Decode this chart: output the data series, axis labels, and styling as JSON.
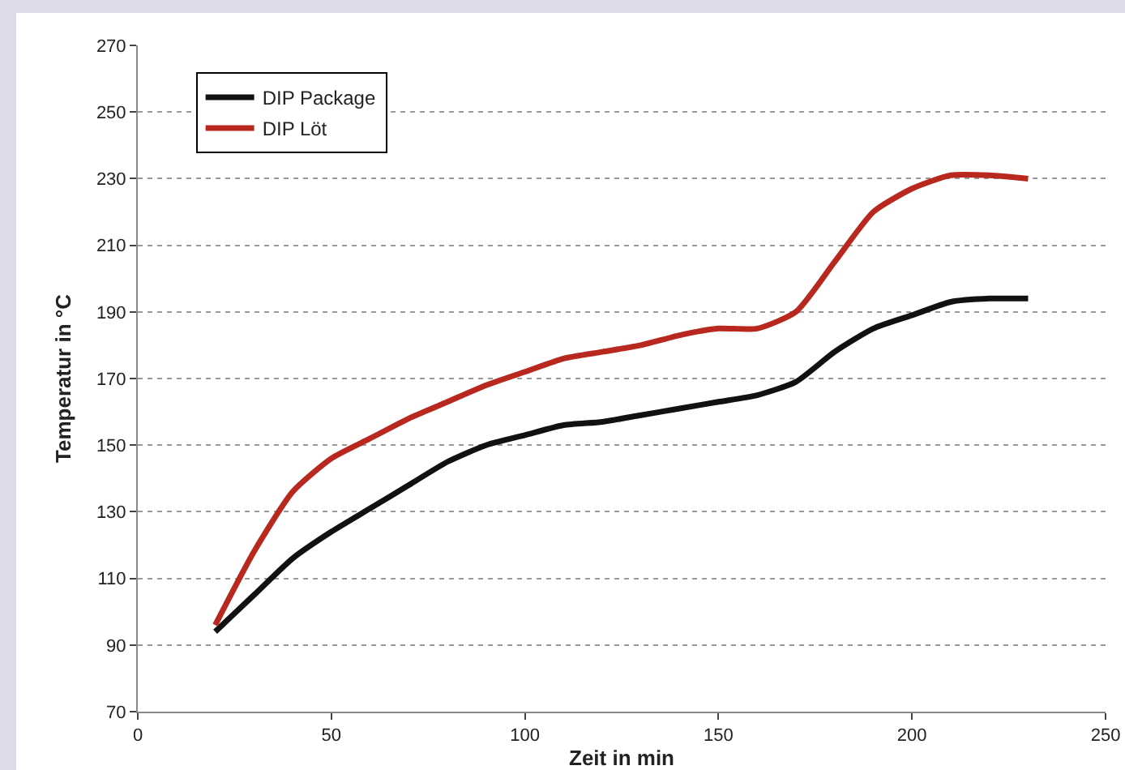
{
  "chart_data": {
    "type": "line",
    "xlabel": "Zeit in min",
    "ylabel": "Temperatur in °C",
    "x": [
      20,
      30,
      40,
      50,
      60,
      70,
      80,
      90,
      100,
      110,
      120,
      130,
      140,
      150,
      160,
      170,
      180,
      190,
      200,
      210,
      220,
      230
    ],
    "series": [
      {
        "name": "DIP Package",
        "color": "#111111",
        "values": [
          94,
          105,
          116,
          124,
          131,
          138,
          145,
          150,
          153,
          156,
          157,
          159,
          161,
          163,
          165,
          169,
          178,
          185,
          189,
          193,
          194,
          194
        ]
      },
      {
        "name": "DIP Löt",
        "color": "#b8281e",
        "values": [
          96,
          118,
          136,
          146,
          152,
          158,
          163,
          168,
          172,
          176,
          178,
          180,
          183,
          185,
          185,
          190,
          205,
          220,
          227,
          231,
          231,
          230
        ]
      }
    ],
    "xlim": [
      0,
      250
    ],
    "xticks": [
      0,
      50,
      100,
      150,
      200,
      250
    ],
    "ylim": [
      70,
      270
    ],
    "yticks": [
      70,
      90,
      110,
      130,
      150,
      170,
      190,
      210,
      230,
      250,
      270
    ],
    "grid": "y",
    "legend": "top left",
    "marker": "none",
    "line_style": "solid"
  }
}
